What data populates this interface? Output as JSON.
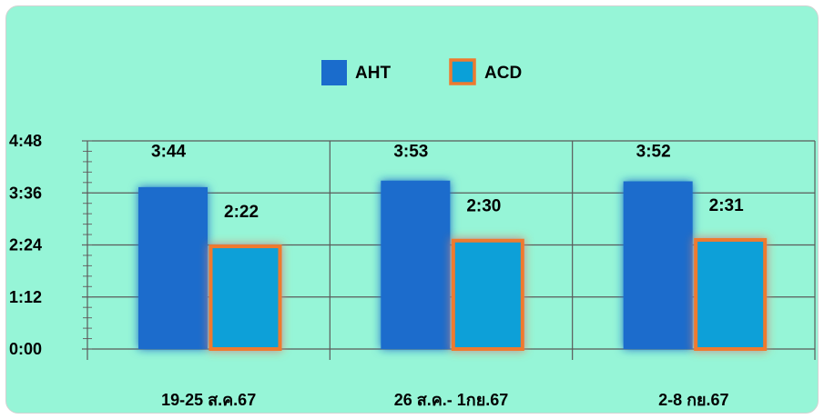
{
  "chart_data": {
    "type": "bar",
    "title": "",
    "xlabel": "",
    "ylabel": "",
    "categories": [
      "19-25 ส.ค.67",
      "26 ส.ค.- 1กย.67",
      "2-8 กย.67"
    ],
    "y_ticks": [
      "0:00",
      "1:12",
      "2:24",
      "3:36",
      "4:48"
    ],
    "ylim_seconds": [
      0,
      288
    ],
    "series": [
      {
        "name": "AHT",
        "values_seconds": [
          224,
          233,
          232
        ],
        "labels": [
          "3:44",
          "3:53",
          "3:52"
        ],
        "color": "#1a6ccc"
      },
      {
        "name": "ACD",
        "values_seconds": [
          142,
          150,
          151
        ],
        "labels": [
          "2:22",
          "2:30",
          "2:31"
        ],
        "color": "#0aa0d8",
        "border_color": "#ef7a2e"
      }
    ],
    "legend_position": "top-center",
    "grid": true
  }
}
